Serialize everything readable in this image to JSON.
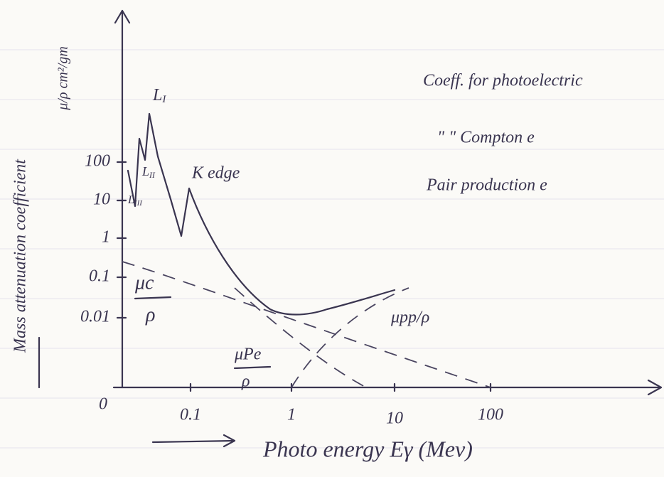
{
  "y_axis": {
    "title": "Mass attenuation coefficient",
    "unit": "μ/ρ  cm²/gm",
    "ticks": [
      "100",
      "10",
      "1",
      "0.1",
      "0.01"
    ],
    "origin": "0"
  },
  "x_axis": {
    "title": "Photo energy  Eγ  (Mev)",
    "ticks": [
      "0.1",
      "1",
      "10",
      "100"
    ]
  },
  "annotations": {
    "l1": "L",
    "l1_sub": "I",
    "l2": "L",
    "l2_sub": "II",
    "l3": "L",
    "l3_sub": "III",
    "k_edge": "K edge",
    "compton": "μc",
    "compton_den": "ρ",
    "photo": "μPe",
    "photo_den": "ρ",
    "pair": "μpp/ρ"
  },
  "notes": [
    "Coeff. for photoelectric",
    "\"   \"   Compton e",
    "Pair production e"
  ]
}
